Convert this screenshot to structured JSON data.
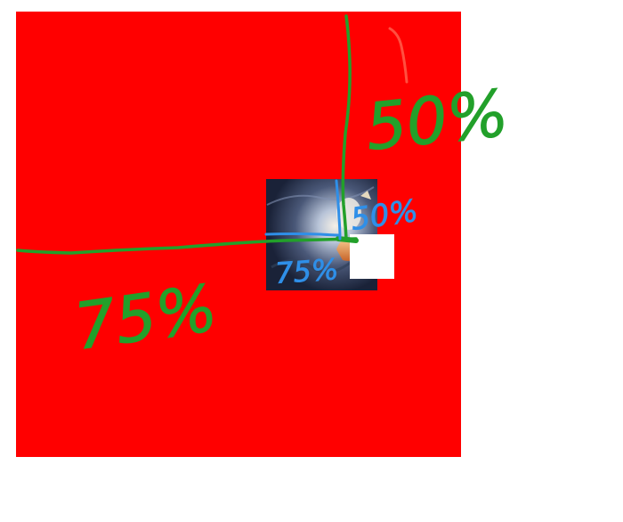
{
  "annotations": {
    "outer_horizontal_label": "75%",
    "outer_vertical_label": "50%",
    "inner_horizontal_label": "75%",
    "inner_vertical_label": "50%"
  },
  "colors": {
    "background": "#ffffff",
    "red_square": "#ff0000",
    "green_ink": "#22a02a",
    "blue_ink": "#2f8fe8",
    "red_ink": "#ff5040",
    "white_box": "#ffffff"
  }
}
